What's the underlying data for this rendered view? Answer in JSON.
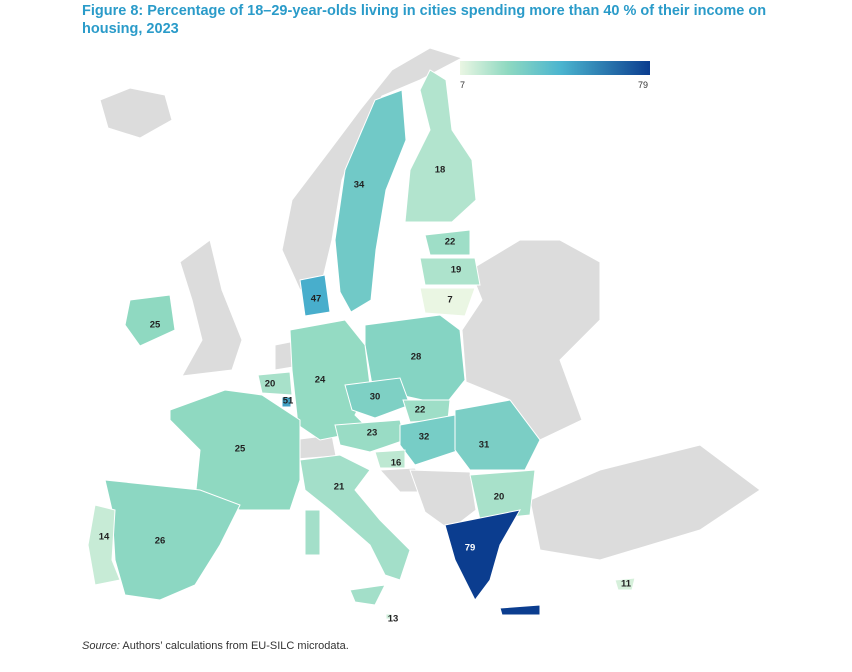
{
  "title": "Figure 8: Percentage of 18–29-year-olds living in cities spending more than 40 % of their income on housing, 2023",
  "source_label": "Source:",
  "source_text": " Authors’ calculations from EU-SILC microdata.",
  "legend": {
    "min": "7",
    "max": "79",
    "colors": [
      "#eaf6e3",
      "#8fd9c1",
      "#4bb5cf",
      "#0b3d8f"
    ]
  },
  "no_data_color": "#dcdcdc",
  "chart_data": {
    "type": "choropleth",
    "title": "Figure 8: Percentage of 18–29-year-olds living in cities spending more than 40 % of their income on housing, 2023",
    "scale": [
      7,
      79
    ],
    "regions": [
      {
        "id": "SE",
        "value": 34
      },
      {
        "id": "FI",
        "value": 18
      },
      {
        "id": "EE",
        "value": 22
      },
      {
        "id": "LV",
        "value": 19
      },
      {
        "id": "LT",
        "value": 7
      },
      {
        "id": "DK",
        "value": 47
      },
      {
        "id": "IE",
        "value": 25
      },
      {
        "id": "PL",
        "value": 28
      },
      {
        "id": "DE",
        "value": 24
      },
      {
        "id": "BE",
        "value": 20
      },
      {
        "id": "LU",
        "value": 51
      },
      {
        "id": "CZ",
        "value": 30
      },
      {
        "id": "SK",
        "value": 22
      },
      {
        "id": "AT",
        "value": 23
      },
      {
        "id": "HU",
        "value": 32
      },
      {
        "id": "RO",
        "value": 31
      },
      {
        "id": "SI",
        "value": 16
      },
      {
        "id": "FR",
        "value": 25
      },
      {
        "id": "ES",
        "value": 26
      },
      {
        "id": "PT",
        "value": 14
      },
      {
        "id": "IT",
        "value": 21
      },
      {
        "id": "MT",
        "value": 13
      },
      {
        "id": "BG",
        "value": 20
      },
      {
        "id": "GR",
        "value": 79
      },
      {
        "id": "CY",
        "value": 11
      }
    ]
  }
}
